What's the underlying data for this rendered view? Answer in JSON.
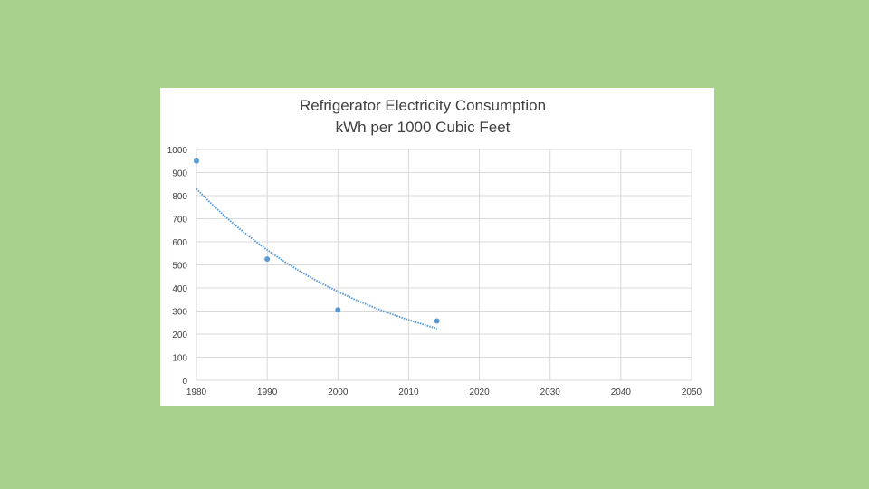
{
  "colors": {
    "background": "#a9d18e",
    "panel": "#ffffff",
    "grid": "#d9d9d9",
    "series": "#5b9bd5",
    "text": "#404040"
  },
  "chart_data": {
    "type": "scatter",
    "title": "Refrigerator Electricity Consumption",
    "subtitle": "kWh per 1000 Cubic Feet",
    "xlabel": "",
    "ylabel": "",
    "xlim": [
      1980,
      2050
    ],
    "ylim": [
      0,
      1000
    ],
    "x_ticks": [
      "1980",
      "1990",
      "2000",
      "2010",
      "2020",
      "2030",
      "2040",
      "2050"
    ],
    "y_ticks": [
      "0",
      "100",
      "200",
      "300",
      "400",
      "500",
      "600",
      "700",
      "800",
      "900",
      "1000"
    ],
    "grid": true,
    "legend": "none",
    "series": [
      {
        "name": "Consumption",
        "x": [
          1980,
          1990,
          2000,
          2014
        ],
        "y": [
          950,
          525,
          305,
          257
        ]
      }
    ],
    "trendline": {
      "type": "exponential",
      "x_range": [
        1980,
        2014
      ],
      "a": 830,
      "b": -0.0385
    }
  }
}
